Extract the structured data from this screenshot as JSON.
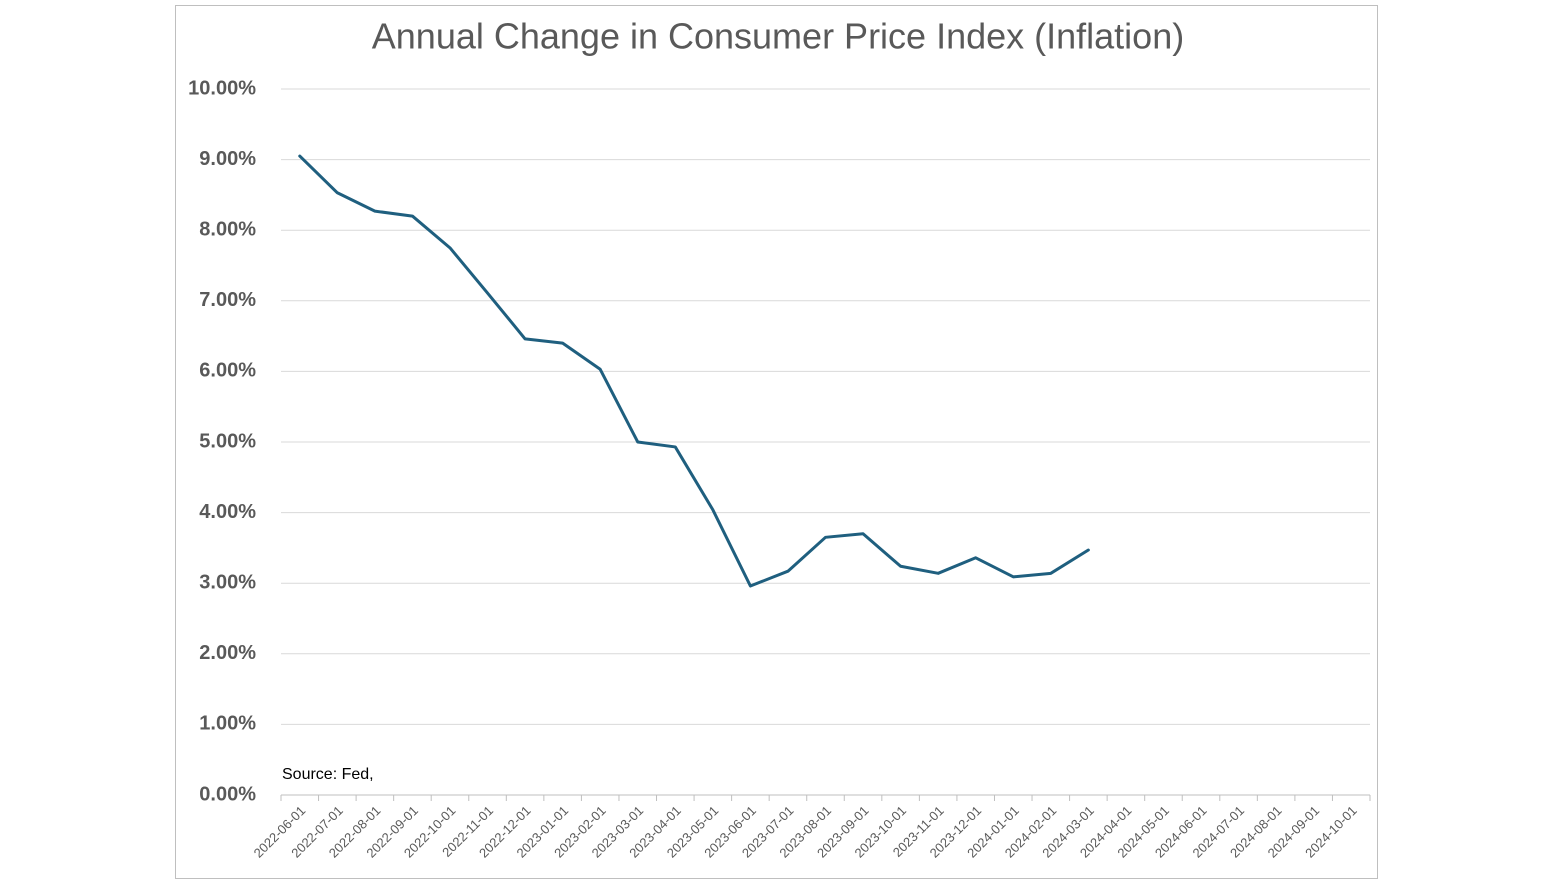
{
  "chart_data": {
    "type": "line",
    "title": "Annual Change in Consumer Price Index (Inflation)",
    "annotation": "Source:  Fed,",
    "categories": [
      "2022-06-01",
      "2022-07-01",
      "2022-08-01",
      "2022-09-01",
      "2022-10-01",
      "2022-11-01",
      "2022-12-01",
      "2023-01-01",
      "2023-02-01",
      "2023-03-01",
      "2023-04-01",
      "2023-05-01",
      "2023-06-01",
      "2023-07-01",
      "2023-08-01",
      "2023-09-01",
      "2023-10-01",
      "2023-11-01",
      "2023-12-01",
      "2024-01-01",
      "2024-02-01",
      "2024-03-01",
      "2024-04-01",
      "2024-05-01",
      "2024-06-01",
      "2024-07-01",
      "2024-08-01",
      "2024-09-01",
      "2024-10-01"
    ],
    "values": [
      9.05,
      8.53,
      8.27,
      8.2,
      7.75,
      7.11,
      6.46,
      6.4,
      6.03,
      5.0,
      4.93,
      4.04,
      2.96,
      3.17,
      3.65,
      3.7,
      3.24,
      3.14,
      3.36,
      3.09,
      3.14,
      3.47,
      null,
      null,
      null,
      null,
      null,
      null,
      null
    ],
    "color": "#1f5f7f",
    "ylim": [
      0,
      10
    ],
    "yticks": [
      {
        "value": 0,
        "label": "0.00%"
      },
      {
        "value": 1,
        "label": "1.00%"
      },
      {
        "value": 2,
        "label": "2.00%"
      },
      {
        "value": 3,
        "label": "3.00%"
      },
      {
        "value": 4,
        "label": "4.00%"
      },
      {
        "value": 5,
        "label": "5.00%"
      },
      {
        "value": 6,
        "label": "6.00%"
      },
      {
        "value": 7,
        "label": "7.00%"
      },
      {
        "value": 8,
        "label": "8.00%"
      },
      {
        "value": 9,
        "label": "9.00%"
      },
      {
        "value": 10,
        "label": "10.00%"
      }
    ],
    "grid": true
  }
}
